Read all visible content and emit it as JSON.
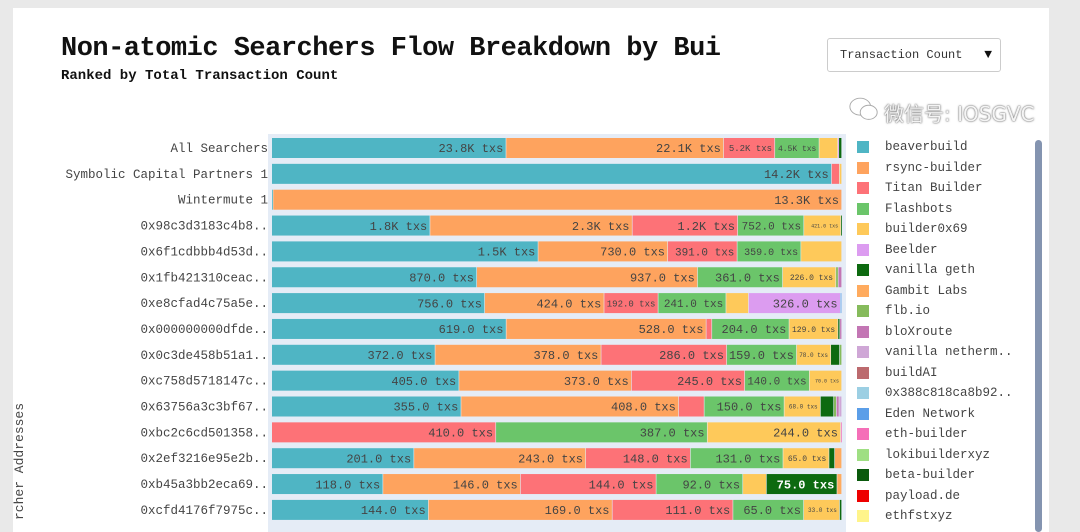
{
  "chart_data": {
    "type": "bar",
    "orientation": "horizontal",
    "stacked": true,
    "normalized": true,
    "title": "Non-atomic Searchers Flow Breakdown by Bui",
    "subtitle": "Ranked by Total Transaction Count",
    "ylabel": "rcher Addresses",
    "value_suffix": " txs",
    "legend_position": "right",
    "grid": false,
    "categories": [
      "All Searchers",
      "Symbolic Capital Partners 1",
      "Wintermute 1",
      "0x98c3d3183c4b8..",
      "0x6f1cdbbb4d53d..",
      "0x1fb421310ceac..",
      "0xe8cfad4c75a5e..",
      "0x000000000dfde..",
      "0x0c3de458b51a1..",
      "0xc758d5718147c..",
      "0x63756a3c3bf67..",
      "0xbc2c6cd501358..",
      "0x2ef3216e95e2b..",
      "0xb45a3bb2eca69..",
      "0xcfd4176f7975c.."
    ],
    "series": [
      {
        "name": "beaverbuild",
        "color": "#4fb5c4",
        "values": [
          23800,
          14200,
          30,
          1800,
          1500,
          870,
          756,
          619,
          372,
          405,
          355,
          0,
          201,
          118,
          144
        ]
      },
      {
        "name": "rsync-builder",
        "color": "#fea35e",
        "values": [
          22100,
          0,
          13300,
          2300,
          730,
          937,
          424,
          528,
          378,
          373,
          408,
          0,
          243,
          146,
          169
        ]
      },
      {
        "name": "Titan Builder",
        "color": "#fd7277",
        "values": [
          5200,
          200,
          0,
          1200,
          391,
          0,
          192,
          15,
          286,
          245,
          48,
          410,
          148,
          144,
          111
        ]
      },
      {
        "name": "Flashbots",
        "color": "#6bc56a",
        "values": [
          4500,
          0,
          0,
          752,
          359,
          361,
          241,
          204,
          159,
          140,
          150,
          387,
          131,
          92,
          65
        ]
      },
      {
        "name": "builder0x69",
        "color": "#fec95a",
        "values": [
          1900,
          60,
          0,
          421,
          230,
          226,
          80,
          129,
          78,
          70,
          68,
          244,
          65,
          25,
          33
        ]
      },
      {
        "name": "Beelder",
        "color": "#dc9cf0",
        "values": [
          100,
          0,
          0,
          0,
          0,
          0,
          326,
          0,
          0,
          0,
          0,
          0,
          0,
          0,
          0
        ]
      },
      {
        "name": "vanilla geth",
        "color": "#0d6a10",
        "values": [
          300,
          0,
          0,
          10,
          0,
          0,
          0,
          5,
          20,
          0,
          25,
          0,
          8,
          75,
          2
        ]
      },
      {
        "name": "Gambit Labs",
        "color": "#ffab5e",
        "values": [
          0,
          0,
          0,
          0,
          0,
          0,
          0,
          0,
          0,
          0,
          0,
          0,
          10,
          5,
          0
        ]
      },
      {
        "name": "flb.io",
        "color": "#86bb5c",
        "values": [
          0,
          0,
          0,
          0,
          0,
          10,
          0,
          0,
          5,
          0,
          5,
          0,
          0,
          0,
          0
        ]
      },
      {
        "name": "bloXroute",
        "color": "#c376b4",
        "values": [
          0,
          0,
          0,
          0,
          0,
          15,
          0,
          5,
          0,
          0,
          5,
          0,
          0,
          0,
          0
        ]
      },
      {
        "name": "vanilla netherm..",
        "color": "#cfa7d6",
        "values": [
          0,
          0,
          0,
          0,
          0,
          0,
          0,
          0,
          0,
          0,
          5,
          0,
          0,
          0,
          0
        ]
      },
      {
        "name": "buildAI",
        "color": "#bc6a6e",
        "values": [
          0,
          0,
          0,
          0,
          0,
          0,
          0,
          0,
          0,
          0,
          0,
          0,
          0,
          0,
          0
        ]
      },
      {
        "name": "0x388c818ca8b92..",
        "color": "#9ccfe3",
        "values": [
          0,
          0,
          0,
          0,
          0,
          0,
          0,
          0,
          0,
          0,
          0,
          0,
          0,
          0,
          0
        ]
      },
      {
        "name": "Eden Network",
        "color": "#5b9ee8",
        "values": [
          0,
          0,
          0,
          0,
          0,
          0,
          5,
          0,
          0,
          0,
          0,
          0,
          0,
          0,
          0
        ]
      },
      {
        "name": "eth-builder",
        "color": "#f56fb8",
        "values": [
          0,
          0,
          0,
          0,
          0,
          0,
          0,
          0,
          0,
          0,
          0,
          2,
          0,
          0,
          0
        ]
      },
      {
        "name": "lokibuilderxyz",
        "color": "#9fdf83",
        "values": [
          0,
          0,
          0,
          0,
          0,
          0,
          0,
          0,
          0,
          0,
          0,
          0,
          0,
          0,
          0
        ]
      },
      {
        "name": "beta-builder",
        "color": "#0a5a0c",
        "values": [
          0,
          0,
          0,
          0,
          0,
          0,
          0,
          0,
          0,
          0,
          0,
          0,
          0,
          0,
          0
        ]
      },
      {
        "name": "payload.de",
        "color": "#ee0000",
        "values": [
          0,
          0,
          0,
          0,
          0,
          0,
          0,
          0,
          0,
          0,
          0,
          0,
          0,
          0,
          0
        ]
      },
      {
        "name": "ethfstxyz",
        "color": "#fff48a",
        "values": [
          0,
          0,
          0,
          0,
          0,
          0,
          0,
          0,
          0,
          0,
          0,
          0,
          0,
          0,
          0
        ]
      }
    ],
    "labels": [
      [
        "23.8K txs",
        "22.1K txs",
        "5.2K txs",
        "4.5K txs",
        "",
        "",
        "",
        "",
        "",
        "",
        "",
        "",
        "",
        "",
        "",
        "",
        "",
        "",
        ""
      ],
      [
        "14.2K txs",
        "",
        "",
        "",
        "",
        "",
        "",
        "",
        "",
        "",
        "",
        "",
        "",
        "",
        "",
        "",
        "",
        "",
        ""
      ],
      [
        "",
        "13.3K txs",
        "",
        "",
        "",
        "",
        "",
        "",
        "",
        "",
        "",
        "",
        "",
        "",
        "",
        "",
        "",
        "",
        ""
      ],
      [
        "1.8K txs",
        "2.3K txs",
        "1.2K txs",
        "752.0 txs",
        "421.0 txs",
        "",
        "",
        "",
        "",
        "",
        "",
        "",
        "",
        "",
        "",
        "",
        "",
        "",
        ""
      ],
      [
        "1.5K txs",
        "730.0 txs",
        "391.0 txs",
        "359.0 txs",
        "",
        "",
        "",
        "",
        "",
        "",
        "",
        "",
        "",
        "",
        "",
        "",
        "",
        "",
        ""
      ],
      [
        "870.0 txs",
        "937.0 txs",
        "",
        "361.0 txs",
        "226.0 txs",
        "",
        "",
        "",
        "",
        "",
        "",
        "",
        "",
        "",
        "",
        "",
        "",
        "",
        ""
      ],
      [
        "756.0 txs",
        "424.0 txs",
        "192.0 txs",
        "241.0 txs",
        "",
        "326.0 txs",
        "",
        "",
        "",
        "",
        "",
        "",
        "",
        "",
        "",
        "",
        "",
        "",
        ""
      ],
      [
        "619.0 txs",
        "528.0 txs",
        "",
        "204.0 txs",
        "129.0 txs",
        "",
        "",
        "",
        "",
        "",
        "",
        "",
        "",
        "",
        "",
        "",
        "",
        "",
        ""
      ],
      [
        "372.0 txs",
        "378.0 txs",
        "286.0 txs",
        "159.0 txs",
        "78.0 txs",
        "",
        "",
        "",
        "",
        "",
        "",
        "",
        "",
        "",
        "",
        "",
        "",
        "",
        ""
      ],
      [
        "405.0 txs",
        "373.0 txs",
        "245.0 txs",
        "140.0 txs",
        "70.0 txs",
        "",
        "",
        "",
        "",
        "",
        "",
        "",
        "",
        "",
        "",
        "",
        "",
        "",
        ""
      ],
      [
        "355.0 txs",
        "408.0 txs",
        "",
        "150.0 txs",
        "68.0 txs",
        "",
        "",
        "",
        "",
        "",
        "",
        "",
        "",
        "",
        "",
        "",
        "",
        "",
        ""
      ],
      [
        "",
        "",
        "410.0 txs",
        "387.0 txs",
        "244.0 txs",
        "",
        "",
        "",
        "",
        "",
        "",
        "",
        "",
        "",
        "",
        "",
        "",
        "",
        ""
      ],
      [
        "201.0 txs",
        "243.0 txs",
        "148.0 txs",
        "131.0 txs",
        "65.0 txs",
        "",
        "",
        "",
        "",
        "",
        "",
        "",
        "",
        "",
        "",
        "",
        "",
        "",
        ""
      ],
      [
        "118.0 txs",
        "146.0 txs",
        "144.0 txs",
        "92.0 txs",
        "",
        "",
        "75.0 txs",
        "",
        "",
        "",
        "",
        "",
        "",
        "",
        "",
        "",
        "",
        "",
        ""
      ],
      [
        "144.0 txs",
        "169.0 txs",
        "111.0 txs",
        "65.0 txs",
        "33.0 txs",
        "",
        "",
        "",
        "",
        "",
        "",
        "",
        "",
        "",
        "",
        "",
        "",
        "",
        ""
      ]
    ]
  },
  "controls": {
    "metric_dropdown": "Transaction Count"
  },
  "watermark": "微信号: IOSGVC"
}
